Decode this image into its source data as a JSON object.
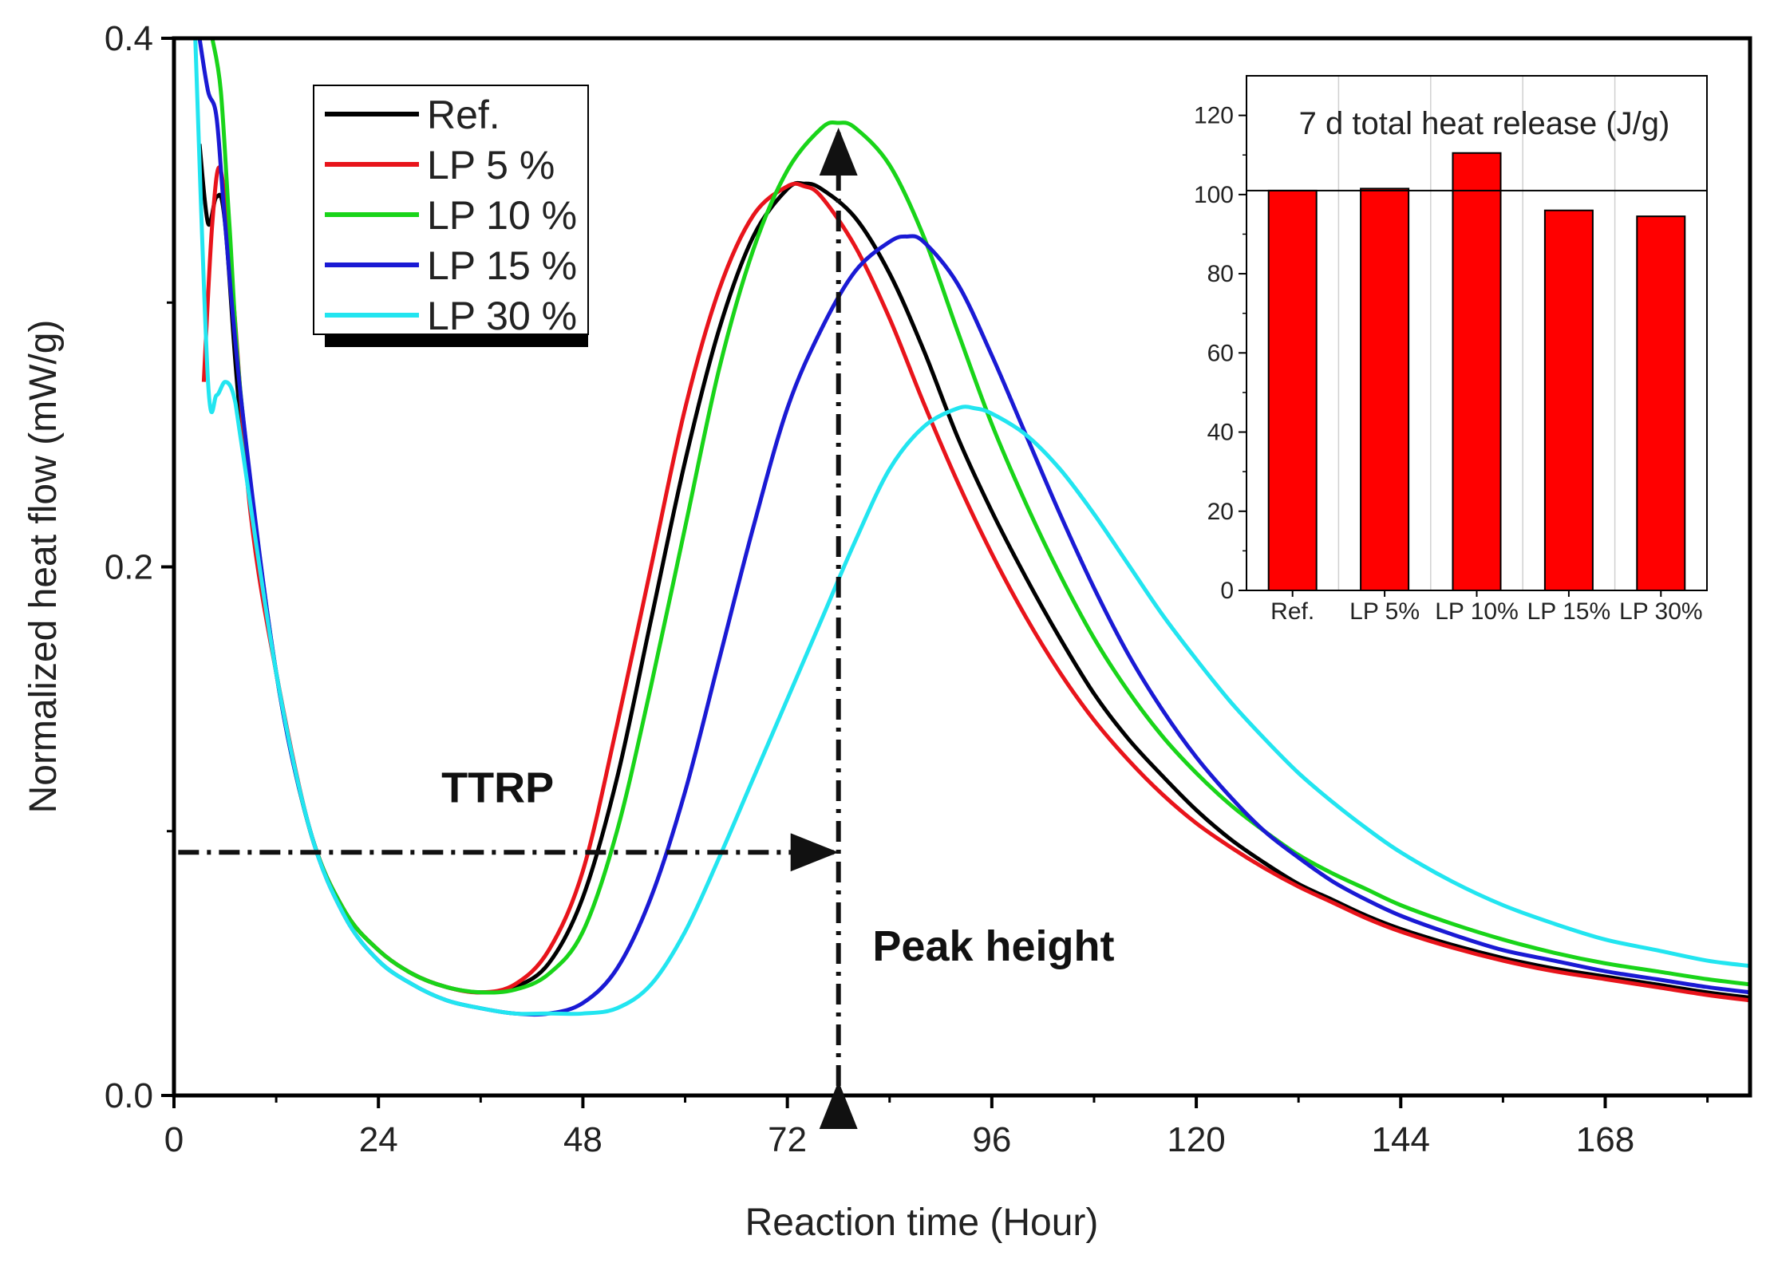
{
  "chart_data": [
    {
      "type": "line",
      "xlabel": "Reaction time (Hour)",
      "ylabel": "Normalized heat flow (mW/g)",
      "xlim": [
        0,
        185
      ],
      "ylim": [
        0,
        0.4
      ],
      "xticks": [
        0,
        24,
        48,
        72,
        96,
        120,
        144,
        168
      ],
      "xtick_labels": [
        "0",
        "24",
        "48",
        "72",
        "96",
        "120",
        "144",
        "168"
      ],
      "yticks": [
        0.0,
        0.2,
        0.4
      ],
      "ytick_labels": [
        "0.0",
        "0.2",
        "0.4"
      ],
      "legend_position": "top-left",
      "series": [
        {
          "name": "Ref.",
          "label": "Ref.",
          "color": "#000000",
          "x": [
            3,
            4,
            5,
            6,
            8,
            12,
            16,
            20,
            24,
            28,
            32,
            36,
            40,
            44,
            48,
            52,
            56,
            60,
            64,
            68,
            72,
            74,
            76,
            80,
            84,
            88,
            92,
            96,
            100,
            104,
            108,
            112,
            116,
            120,
            124,
            128,
            132,
            136,
            140,
            144,
            150,
            156,
            162,
            168,
            174,
            180,
            185
          ],
          "y": [
            0.36,
            0.33,
            0.34,
            0.33,
            0.25,
            0.16,
            0.1,
            0.07,
            0.055,
            0.046,
            0.041,
            0.039,
            0.041,
            0.05,
            0.075,
            0.12,
            0.18,
            0.24,
            0.29,
            0.325,
            0.343,
            0.345,
            0.343,
            0.332,
            0.311,
            0.282,
            0.249,
            0.221,
            0.196,
            0.173,
            0.152,
            0.135,
            0.121,
            0.108,
            0.097,
            0.088,
            0.08,
            0.074,
            0.068,
            0.063,
            0.057,
            0.052,
            0.048,
            0.045,
            0.042,
            0.039,
            0.037
          ]
        },
        {
          "name": "LP 5 %",
          "label": "LP  5 %",
          "color": "#e8141b",
          "x": [
            3.5,
            4.5,
            5.5,
            7,
            9,
            12,
            16,
            20,
            24,
            28,
            32,
            36,
            40,
            44,
            48,
            52,
            56,
            60,
            64,
            68,
            72,
            74,
            76,
            80,
            84,
            88,
            92,
            96,
            100,
            104,
            108,
            112,
            116,
            120,
            124,
            128,
            132,
            136,
            140,
            144,
            150,
            156,
            162,
            168,
            174,
            180,
            185
          ],
          "y": [
            0.27,
            0.33,
            0.35,
            0.3,
            0.22,
            0.16,
            0.1,
            0.07,
            0.055,
            0.046,
            0.041,
            0.039,
            0.042,
            0.055,
            0.085,
            0.14,
            0.2,
            0.26,
            0.305,
            0.333,
            0.344,
            0.344,
            0.34,
            0.321,
            0.294,
            0.262,
            0.232,
            0.205,
            0.181,
            0.16,
            0.142,
            0.127,
            0.114,
            0.103,
            0.094,
            0.086,
            0.079,
            0.073,
            0.067,
            0.062,
            0.056,
            0.051,
            0.047,
            0.044,
            0.041,
            0.038,
            0.036
          ]
        },
        {
          "name": "LP 10 %",
          "label": "LP 10 %",
          "color": "#19d419",
          "x": [
            4.5,
            5.5,
            6.5,
            8,
            12,
            16,
            20,
            24,
            28,
            32,
            36,
            40,
            44,
            48,
            52,
            56,
            60,
            64,
            68,
            72,
            76,
            78,
            80,
            84,
            88,
            92,
            96,
            100,
            104,
            108,
            112,
            116,
            120,
            124,
            128,
            132,
            136,
            140,
            144,
            150,
            156,
            162,
            168,
            174,
            180,
            185
          ],
          "y": [
            0.4,
            0.38,
            0.33,
            0.26,
            0.16,
            0.1,
            0.07,
            0.055,
            0.046,
            0.041,
            0.039,
            0.04,
            0.046,
            0.062,
            0.1,
            0.155,
            0.215,
            0.275,
            0.32,
            0.35,
            0.366,
            0.368,
            0.366,
            0.352,
            0.325,
            0.289,
            0.254,
            0.224,
            0.197,
            0.173,
            0.153,
            0.136,
            0.122,
            0.11,
            0.1,
            0.091,
            0.084,
            0.078,
            0.072,
            0.065,
            0.059,
            0.054,
            0.05,
            0.047,
            0.044,
            0.042
          ]
        },
        {
          "name": "LP 15 %",
          "label": "LP 15 %",
          "color": "#1a1ad4",
          "x": [
            3,
            4,
            5,
            6,
            8,
            12,
            16,
            20,
            24,
            28,
            32,
            36,
            40,
            44,
            48,
            52,
            56,
            60,
            64,
            68,
            72,
            76,
            80,
            84,
            86,
            88,
            92,
            96,
            100,
            104,
            108,
            112,
            116,
            120,
            124,
            128,
            132,
            136,
            140,
            144,
            150,
            156,
            162,
            168,
            174,
            180,
            185
          ],
          "y": [
            0.4,
            0.38,
            0.37,
            0.33,
            0.26,
            0.16,
            0.1,
            0.068,
            0.051,
            0.042,
            0.036,
            0.033,
            0.031,
            0.031,
            0.035,
            0.048,
            0.075,
            0.115,
            0.165,
            0.215,
            0.26,
            0.29,
            0.312,
            0.323,
            0.325,
            0.323,
            0.307,
            0.28,
            0.25,
            0.22,
            0.192,
            0.167,
            0.146,
            0.128,
            0.113,
            0.1,
            0.09,
            0.081,
            0.074,
            0.068,
            0.061,
            0.055,
            0.051,
            0.047,
            0.044,
            0.041,
            0.039
          ]
        },
        {
          "name": "LP 30 %",
          "label": "LP 30 %",
          "color": "#22e5f0",
          "x": [
            2.5,
            4,
            5,
            6,
            7,
            8,
            12,
            16,
            20,
            24,
            28,
            32,
            36,
            40,
            44,
            48,
            52,
            56,
            60,
            64,
            68,
            72,
            76,
            80,
            84,
            88,
            92,
            94,
            96,
            100,
            104,
            108,
            112,
            116,
            120,
            124,
            128,
            132,
            136,
            140,
            144,
            150,
            156,
            162,
            168,
            174,
            180,
            185
          ],
          "y": [
            0.4,
            0.27,
            0.265,
            0.27,
            0.265,
            0.245,
            0.16,
            0.1,
            0.068,
            0.051,
            0.042,
            0.036,
            0.033,
            0.031,
            0.031,
            0.031,
            0.033,
            0.042,
            0.062,
            0.09,
            0.12,
            0.15,
            0.18,
            0.21,
            0.237,
            0.253,
            0.26,
            0.26,
            0.258,
            0.25,
            0.237,
            0.22,
            0.201,
            0.182,
            0.165,
            0.149,
            0.135,
            0.122,
            0.111,
            0.101,
            0.092,
            0.081,
            0.072,
            0.065,
            0.059,
            0.055,
            0.051,
            0.049
          ]
        }
      ],
      "annotations": [
        {
          "text": "TTRP",
          "x": 38,
          "y": 0.111
        },
        {
          "text": "Peak height",
          "x": 82,
          "y": 0.051
        }
      ],
      "arrows": [
        {
          "name": "ttrp-arrow",
          "x1": 0.5,
          "y1": 0.092,
          "x2": 78,
          "y2": 0.092
        },
        {
          "name": "peak-height-arrow",
          "x1": 78,
          "y1": 0.0,
          "x2": 78,
          "y2": 0.368
        }
      ]
    },
    {
      "type": "bar",
      "title": "7 d total heat release (J/g)",
      "categories": [
        "Ref.",
        "LP 5%",
        "LP 10%",
        "LP 15%",
        "LP 30%"
      ],
      "values": [
        101,
        101.5,
        110.5,
        96,
        94.5
      ],
      "ylim": [
        0,
        130
      ],
      "yticks": [
        0,
        20,
        40,
        60,
        80,
        100,
        120
      ],
      "ytick_labels": [
        "0",
        "20",
        "40",
        "60",
        "80",
        "100",
        "120"
      ],
      "reference_line": 101,
      "bar_color": "#ff0000"
    }
  ]
}
